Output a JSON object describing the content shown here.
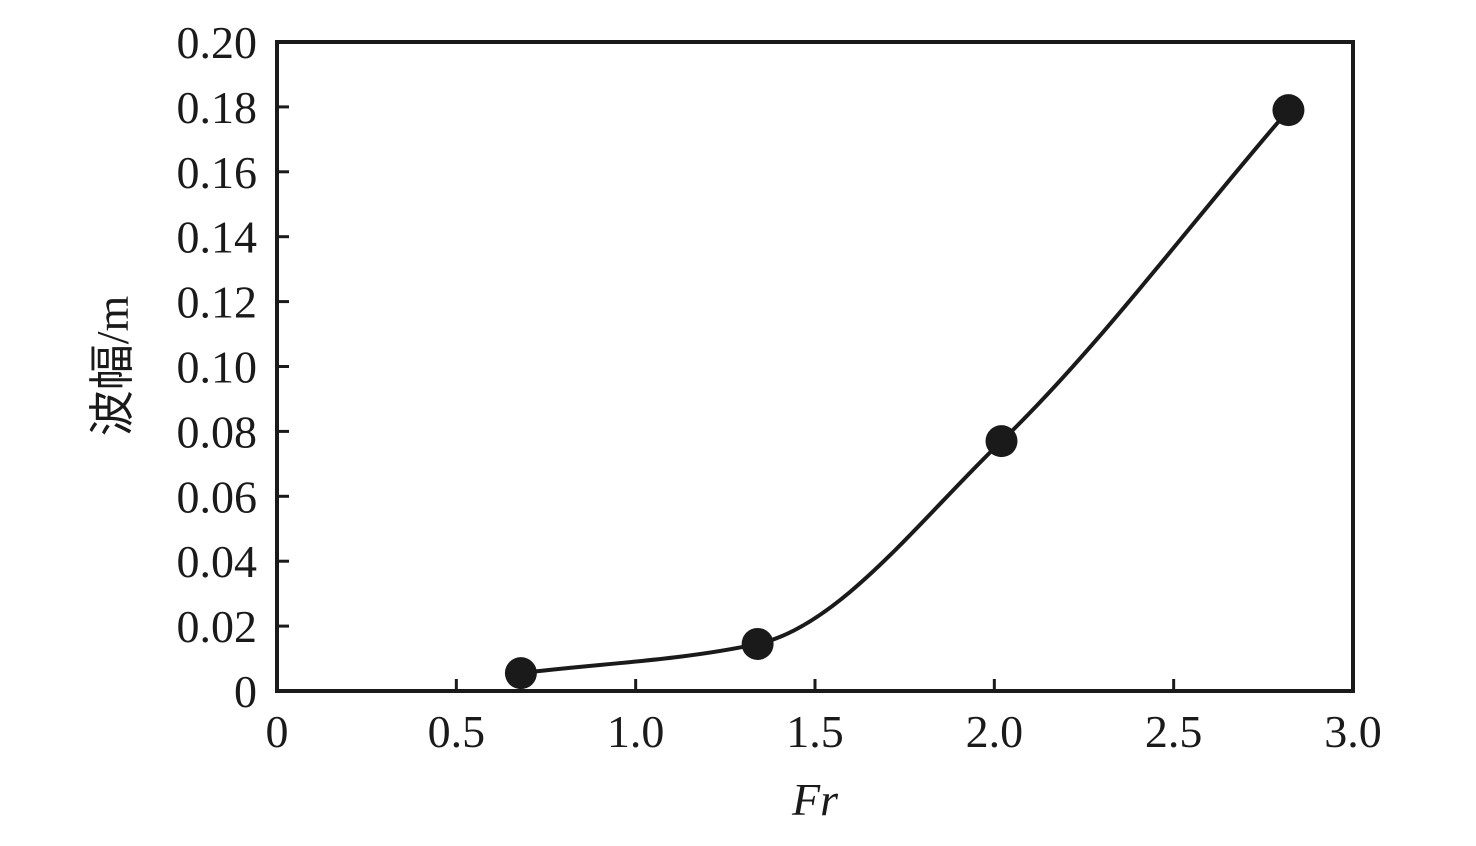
{
  "chart_data": {
    "type": "line",
    "title": "",
    "xlabel": "Fr",
    "ylabel": "波幅/m",
    "xlim": [
      0,
      3.0
    ],
    "ylim": [
      0,
      0.2
    ],
    "x_ticks": [
      "0",
      "0.5",
      "1.0",
      "1.5",
      "2.0",
      "2.5",
      "3.0"
    ],
    "x_tick_values": [
      0,
      0.5,
      1.0,
      1.5,
      2.0,
      2.5,
      3.0
    ],
    "y_ticks": [
      "0",
      "0.02",
      "0.04",
      "0.06",
      "0.08",
      "0.10",
      "0.12",
      "0.14",
      "0.16",
      "0.18",
      "0.20"
    ],
    "y_tick_values": [
      0,
      0.02,
      0.04,
      0.06,
      0.08,
      0.1,
      0.12,
      0.14,
      0.16,
      0.18,
      0.2
    ],
    "grid": false,
    "legend": "none",
    "series": [
      {
        "x": [
          0.68,
          1.34,
          2.02,
          2.82
        ],
        "values": [
          0.0055,
          0.0145,
          0.077,
          0.179
        ],
        "color": "#1a1a1a",
        "marker": "filled-circle",
        "curve": "smooth"
      }
    ]
  }
}
